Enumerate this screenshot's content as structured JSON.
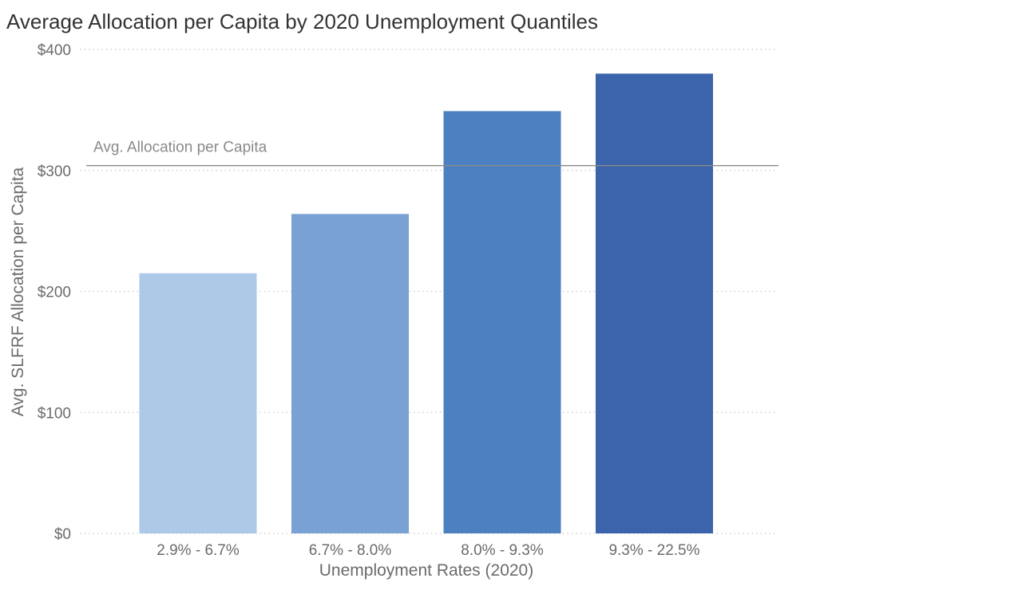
{
  "chart_data": {
    "type": "bar",
    "title": "Average Allocation per Capita by 2020 Unemployment Quantiles",
    "xlabel": "Unemployment Rates (2020)",
    "ylabel": "Avg. SLFRF Allocation per Capita",
    "categories": [
      "2.9% - 6.7%",
      "6.7% - 8.0%",
      "8.0% - 9.3%",
      "9.3% - 22.5%"
    ],
    "values": [
      215,
      264,
      349,
      380
    ],
    "bar_colors": [
      "#aec8e7",
      "#79a1d3",
      "#4c80c1",
      "#3b64aa"
    ],
    "ylim": [
      0,
      400
    ],
    "yticks": [
      0,
      100,
      200,
      300,
      400
    ],
    "ytick_labels": [
      "$0",
      "$100",
      "$200",
      "$300",
      "$400"
    ],
    "grid": true,
    "reference_line": {
      "label": "Avg. Allocation per Capita",
      "value": 304,
      "color": "#8a8a8a"
    }
  }
}
